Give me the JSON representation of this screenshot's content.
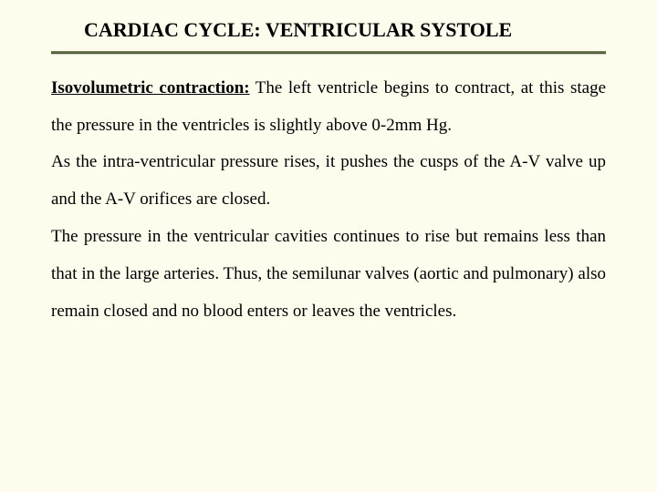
{
  "title": "CARDIAC CYCLE: VENTRICULAR SYSTOLE",
  "paragraphs": {
    "p1_lead": "Isovolumetric contraction:",
    "p1_rest": " The left ventricle begins to contract, at this stage the pressure in the ventricles is slightly above 0-2mm Hg.",
    "p2": "As the intra-ventricular pressure rises, it pushes the cusps of the A-V valve up and the A-V orifices are closed.",
    "p3": "The pressure in the ventricular cavities continues to rise but remains less than that in the large arteries. Thus, the semilunar valves (aortic and pulmonary) also remain closed and no blood enters or leaves the ventricles."
  },
  "colors": {
    "background": "#fdfced",
    "text": "#000000",
    "divider_top": "#7a8a5a",
    "divider_bottom": "#3a4a2a"
  },
  "typography": {
    "title_fontsize": 22,
    "body_fontsize": 19,
    "font_family": "Georgia, Times New Roman, serif",
    "line_height": 2.15
  }
}
